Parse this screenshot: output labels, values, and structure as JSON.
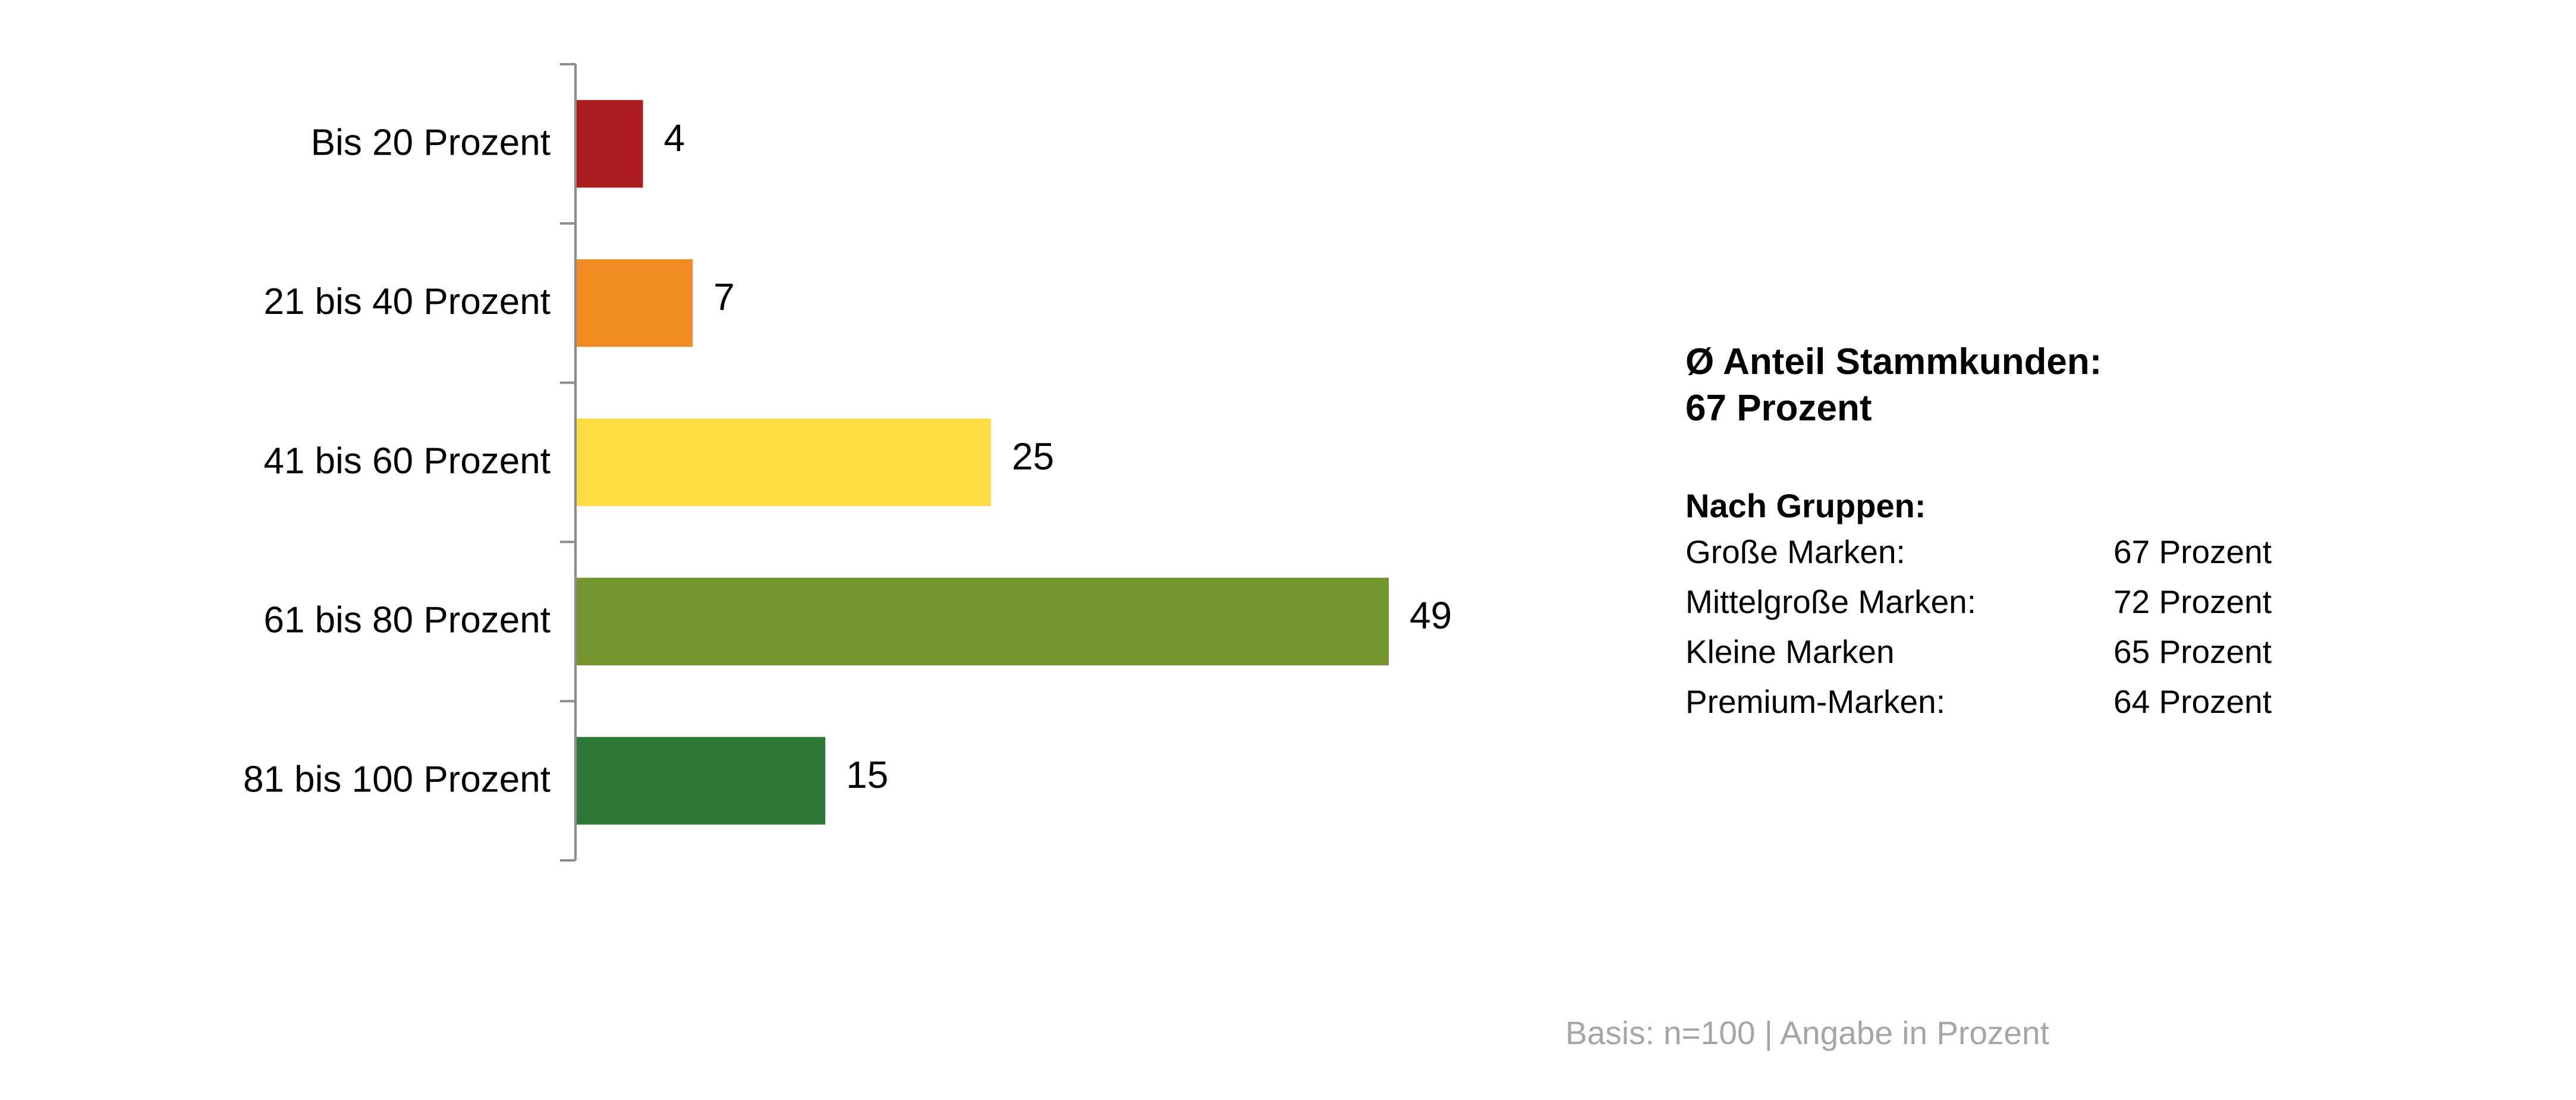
{
  "chart_data": {
    "type": "bar",
    "orientation": "horizontal",
    "categories": [
      "Bis 20 Prozent",
      "21 bis 40 Prozent",
      "41 bis 60 Prozent",
      "61 bis 80 Prozent",
      "81 bis 100 Prozent"
    ],
    "values": [
      4,
      7,
      25,
      49,
      15
    ],
    "colors": [
      "#ab1c1e",
      "#f08b23",
      "#fedd42",
      "#74942d",
      "#2c7735"
    ],
    "data_labels": true,
    "xlim": [
      0,
      50
    ],
    "grid": false,
    "legend": "none"
  },
  "info": {
    "title_line1": "Ø Anteil Stammkunden:",
    "title_line2": "67 Prozent",
    "groups_heading": "Nach Gruppen:",
    "groups": [
      {
        "label": "Große Marken:",
        "value": "67 Prozent"
      },
      {
        "label": "Mittelgroße Marken:",
        "value": "72 Prozent"
      },
      {
        "label": "Kleine Marken",
        "value": "65 Prozent"
      },
      {
        "label": "Premium-Marken:",
        "value": "64 Prozent"
      }
    ]
  },
  "footnote": "Basis: n=100 | Angabe in Prozent"
}
